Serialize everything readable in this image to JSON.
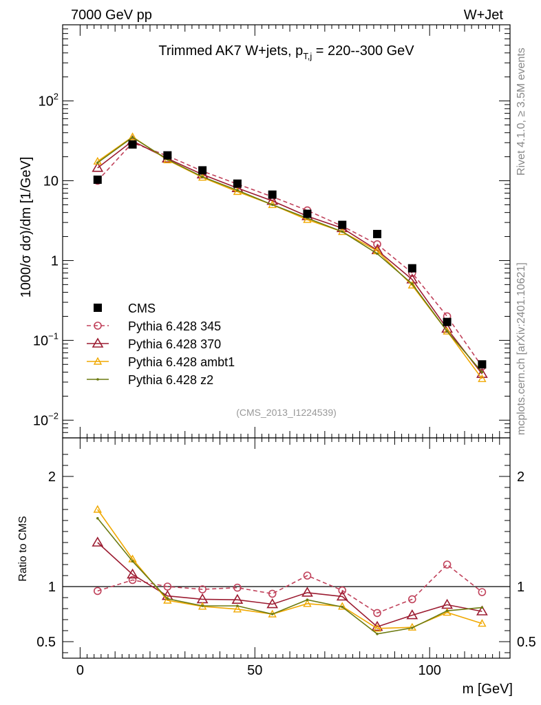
{
  "header": {
    "left": "7000 GeV pp",
    "right": "W+Jet"
  },
  "side_labels": {
    "rivet": "Rivet 4.1.0, ≥ 3.5M events",
    "mcplots": "mcplots.cern.ch [arXiv:2401.10621]"
  },
  "colors": {
    "cms": "#000000",
    "p345": "#c0415a",
    "p370": "#9b1b30",
    "ambt1": "#f0a800",
    "z2": "#6b7a10",
    "axis": "#000000"
  },
  "chart_data": [
    {
      "type": "scatter",
      "panel": "main",
      "title": "Trimmed AK7 W+jets, p",
      "title_sub": "T,j",
      "title_rest": " = 220--300 GeV",
      "ylabel": "1000/σ  dσ)/dm [1/GeV]",
      "xlabel": "m [GeV]",
      "yscale": "log",
      "ylim": [
        0.006,
        900
      ],
      "xlim": [
        -5,
        123
      ],
      "watermark": "(CMS_2013_I1224539)",
      "y_ticks": [
        {
          "value": 0.01,
          "label": "10",
          "sup": "−2"
        },
        {
          "value": 0.1,
          "label": "10",
          "sup": "−1"
        },
        {
          "value": 1,
          "label": "1",
          "sup": ""
        },
        {
          "value": 10,
          "label": "10",
          "sup": ""
        },
        {
          "value": 100,
          "label": "10",
          "sup": "2"
        }
      ],
      "x": [
        5,
        15,
        25,
        35,
        45,
        55,
        65,
        75,
        85,
        95,
        105,
        115
      ],
      "series": [
        {
          "name": "CMS",
          "style": "square",
          "values": [
            10.3,
            28.5,
            20.8,
            13.5,
            9.2,
            6.7,
            3.85,
            2.8,
            2.15,
            0.8,
            0.17,
            0.05
          ]
        },
        {
          "name": "Pythia 6.428 345",
          "style": "circle-dashed",
          "values": [
            10.0,
            30.0,
            20.5,
            13.2,
            9.1,
            6.3,
            4.25,
            2.7,
            1.6,
            0.7,
            0.2,
            0.047
          ]
        },
        {
          "name": "Pythia 6.428 370",
          "style": "triangle",
          "values": [
            14.5,
            31.5,
            19.0,
            12.0,
            8.1,
            5.6,
            3.6,
            2.55,
            1.35,
            0.58,
            0.14,
            0.038
          ]
        },
        {
          "name": "Pythia 6.428 ambt1",
          "style": "triangle-small",
          "values": [
            17.5,
            35.5,
            18.2,
            11.0,
            7.3,
            5.0,
            3.25,
            2.3,
            1.32,
            0.49,
            0.13,
            0.033
          ]
        },
        {
          "name": "Pythia 6.428 z2",
          "style": "dot",
          "values": [
            16.8,
            35.0,
            18.5,
            11.2,
            7.6,
            5.0,
            3.4,
            2.3,
            1.22,
            0.51,
            0.13,
            0.04
          ]
        }
      ]
    },
    {
      "type": "line",
      "panel": "ratio",
      "ylabel": "Ratio to CMS",
      "ylim": [
        0.35,
        2.35
      ],
      "xlim": [
        -5,
        123
      ],
      "y_ticks": [
        0.5,
        1,
        2
      ],
      "x_ticks": [
        0,
        50,
        100
      ],
      "x": [
        5,
        15,
        25,
        35,
        45,
        55,
        65,
        75,
        85,
        95,
        105,
        115
      ],
      "series": [
        {
          "name": "Pythia 6.428 345",
          "values": [
            0.96,
            1.06,
            1.0,
            0.975,
            0.99,
            0.935,
            1.1,
            0.965,
            0.76,
            0.885,
            1.2,
            0.95
          ]
        },
        {
          "name": "Pythia 6.428 370",
          "values": [
            1.4,
            1.11,
            0.915,
            0.885,
            0.88,
            0.84,
            0.945,
            0.91,
            0.635,
            0.74,
            0.835,
            0.775
          ]
        },
        {
          "name": "Pythia 6.428 ambt1",
          "values": [
            1.7,
            1.25,
            0.875,
            0.82,
            0.795,
            0.75,
            0.845,
            0.82,
            0.62,
            0.63,
            0.765,
            0.665
          ]
        },
        {
          "name": "Pythia 6.428 z2",
          "values": [
            1.62,
            1.23,
            0.89,
            0.825,
            0.825,
            0.75,
            0.88,
            0.815,
            0.57,
            0.625,
            0.78,
            0.81
          ]
        }
      ]
    }
  ]
}
